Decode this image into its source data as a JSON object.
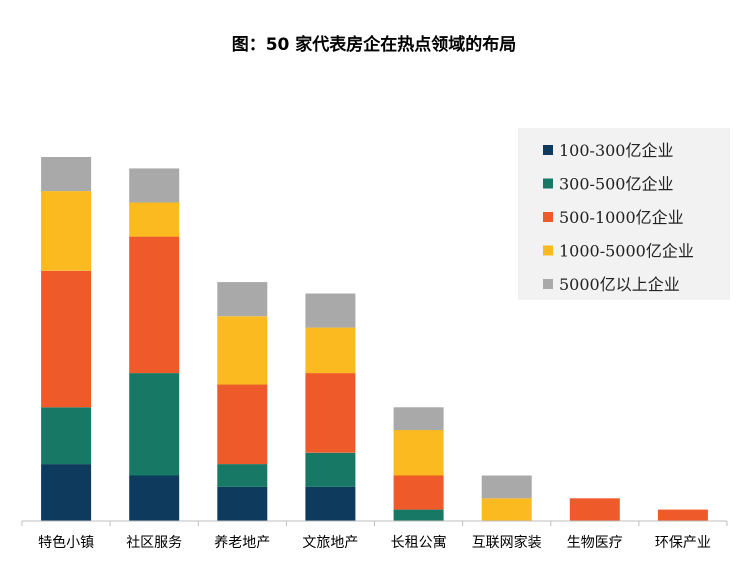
{
  "chart_data": {
    "type": "bar",
    "stacked": true,
    "title": "图：50 家代表房企在热点领域的布局",
    "xlabel": "",
    "ylabel": "",
    "ylim": [
      0,
      32
    ],
    "grid": false,
    "legend_position": "top-right",
    "categories": [
      "特色小镇",
      "社区服务",
      "养老地产",
      "文旅地产",
      "长租公寓",
      "互联网家装",
      "生物医疗",
      "环保产业"
    ],
    "series": [
      {
        "name": "100-300亿企业",
        "color": "#0e3a5e",
        "values": [
          5,
          4,
          3,
          3,
          0,
          0,
          0,
          0
        ]
      },
      {
        "name": "300-500亿企业",
        "color": "#187866",
        "values": [
          5,
          9,
          2,
          3,
          1,
          0,
          0,
          0
        ]
      },
      {
        "name": "500-1000亿企业",
        "color": "#ef5a2a",
        "values": [
          12,
          12,
          7,
          7,
          3,
          0,
          2,
          1
        ]
      },
      {
        "name": "1000-5000亿企业",
        "color": "#fbba1f",
        "values": [
          7,
          3,
          6,
          4,
          4,
          2,
          0,
          0
        ]
      },
      {
        "name": "5000亿以上企业",
        "color": "#a9a9a9",
        "values": [
          3,
          3,
          3,
          3,
          2,
          2,
          0,
          0
        ]
      }
    ]
  }
}
